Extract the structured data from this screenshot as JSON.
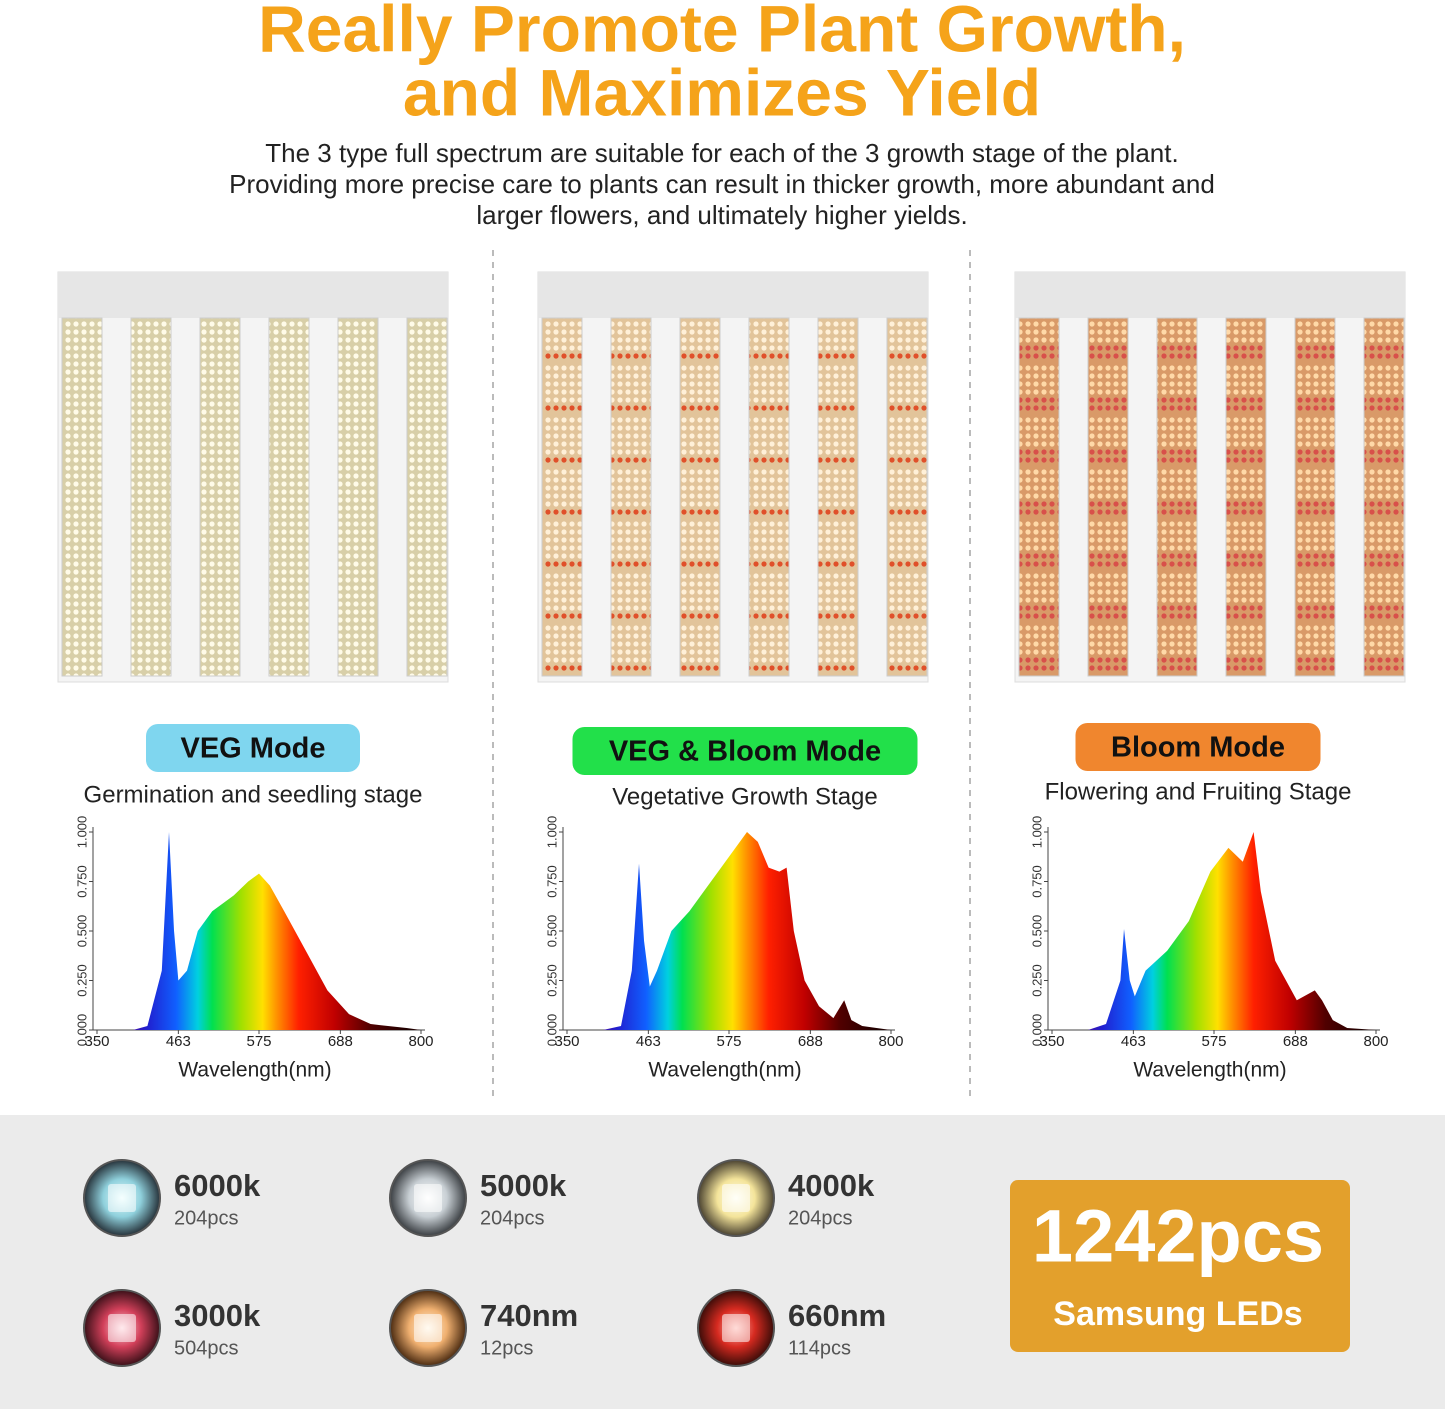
{
  "header": {
    "title": [
      "Really Promote Plant Growth,",
      "and Maximizes Yield"
    ],
    "subtitle": [
      "The 3 type full spectrum are suitable for each of the 3 growth stage of the plant.",
      "Providing more precise care to plants can result in thicker growth, more abundant and",
      "larger flowers, and ultimately higher yields."
    ]
  },
  "panels": [
    {
      "mode": "VEG Mode",
      "stage": "Germination and seedling stage",
      "chart": {
        "type": "area",
        "xlabel": "Wavelength(nm)",
        "xlim": [
          350,
          800
        ],
        "ylim": [
          0,
          1
        ],
        "xticks": [
          350,
          463,
          575,
          688,
          800
        ],
        "yticks": [
          {
            "value": 0,
            "label": "0.000"
          },
          {
            "value": 0.25,
            "label": "0.250"
          },
          {
            "value": 0.5,
            "label": "0.500"
          },
          {
            "value": 0.75,
            "label": "0.750"
          },
          {
            "value": 1,
            "label": "1.000"
          }
        ],
        "x": [
          400,
          420,
          440,
          450,
          457,
          463,
          475,
          490,
          510,
          540,
          560,
          575,
          590,
          610,
          640,
          670,
          700,
          730,
          780,
          800
        ],
        "values": [
          0,
          0.02,
          0.3,
          1.0,
          0.5,
          0.25,
          0.3,
          0.5,
          0.6,
          0.68,
          0.75,
          0.79,
          0.73,
          0.6,
          0.4,
          0.2,
          0.08,
          0.03,
          0.01,
          0
        ]
      }
    },
    {
      "mode": "VEG & Bloom Mode",
      "stage": "Vegetative Growth Stage",
      "chart": {
        "type": "area",
        "xlabel": "Wavelength(nm)",
        "xlim": [
          350,
          800
        ],
        "ylim": [
          0,
          1
        ],
        "xticks": [
          350,
          463,
          575,
          688,
          800
        ],
        "yticks": [
          {
            "value": 0,
            "label": "0.000"
          },
          {
            "value": 0.25,
            "label": "0.250"
          },
          {
            "value": 0.5,
            "label": "0.500"
          },
          {
            "value": 0.75,
            "label": "0.750"
          },
          {
            "value": 1,
            "label": "1.000"
          }
        ],
        "x": [
          400,
          425,
          440,
          450,
          457,
          465,
          475,
          495,
          520,
          560,
          590,
          600,
          615,
          630,
          645,
          655,
          665,
          680,
          700,
          720,
          735,
          745,
          760,
          800
        ],
        "values": [
          0,
          0.02,
          0.3,
          0.84,
          0.45,
          0.22,
          0.3,
          0.5,
          0.6,
          0.8,
          0.95,
          1.0,
          0.95,
          0.82,
          0.8,
          0.82,
          0.5,
          0.25,
          0.12,
          0.06,
          0.15,
          0.05,
          0.02,
          0
        ]
      }
    },
    {
      "mode": "Bloom Mode",
      "stage": "Flowering and Fruiting Stage",
      "chart": {
        "type": "area",
        "xlabel": "Wavelength(nm)",
        "xlim": [
          350,
          800
        ],
        "ylim": [
          0,
          1
        ],
        "xticks": [
          350,
          463,
          575,
          688,
          800
        ],
        "yticks": [
          {
            "value": 0,
            "label": "0.000"
          },
          {
            "value": 0.25,
            "label": "0.250"
          },
          {
            "value": 0.5,
            "label": "0.500"
          },
          {
            "value": 0.75,
            "label": "0.750"
          },
          {
            "value": 1,
            "label": "1.000"
          }
        ],
        "x": [
          400,
          425,
          445,
          450,
          458,
          465,
          480,
          510,
          540,
          570,
          595,
          615,
          630,
          640,
          660,
          690,
          715,
          725,
          740,
          760,
          800
        ],
        "values": [
          0,
          0.03,
          0.25,
          0.51,
          0.25,
          0.17,
          0.3,
          0.4,
          0.55,
          0.8,
          0.92,
          0.85,
          1.0,
          0.7,
          0.35,
          0.15,
          0.2,
          0.15,
          0.05,
          0.01,
          0
        ]
      }
    }
  ],
  "leds": [
    {
      "label": "6000k",
      "count": "204pcs"
    },
    {
      "label": "5000k",
      "count": "204pcs"
    },
    {
      "label": "4000k",
      "count": "204pcs"
    },
    {
      "label": "3000k",
      "count": "504pcs"
    },
    {
      "label": "740nm",
      "count": "12pcs"
    },
    {
      "label": "660nm",
      "count": "114pcs"
    }
  ],
  "total": {
    "count": "1242pcs",
    "label": "Samsung LEDs"
  }
}
